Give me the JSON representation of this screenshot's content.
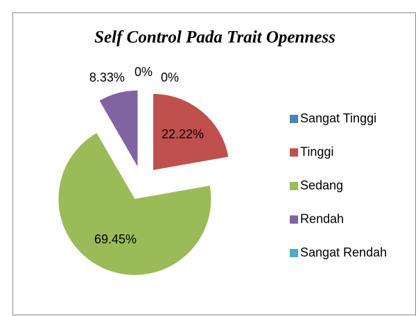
{
  "chart_data": {
    "type": "pie",
    "title": "Self Control Pada Trait Openness",
    "categories": [
      "Sangat Tinggi",
      "Tinggi",
      "Sedang",
      "Rendah",
      "Sangat Rendah"
    ],
    "values": [
      0,
      22.22,
      69.45,
      8.33,
      0
    ],
    "value_labels": [
      "0%",
      "22.22%",
      "69.45%",
      "8.33%",
      "0%"
    ],
    "colors": [
      "#4f81bd",
      "#c0504d",
      "#9bbb59",
      "#8064a2",
      "#4bacc6"
    ],
    "legend": "right"
  }
}
